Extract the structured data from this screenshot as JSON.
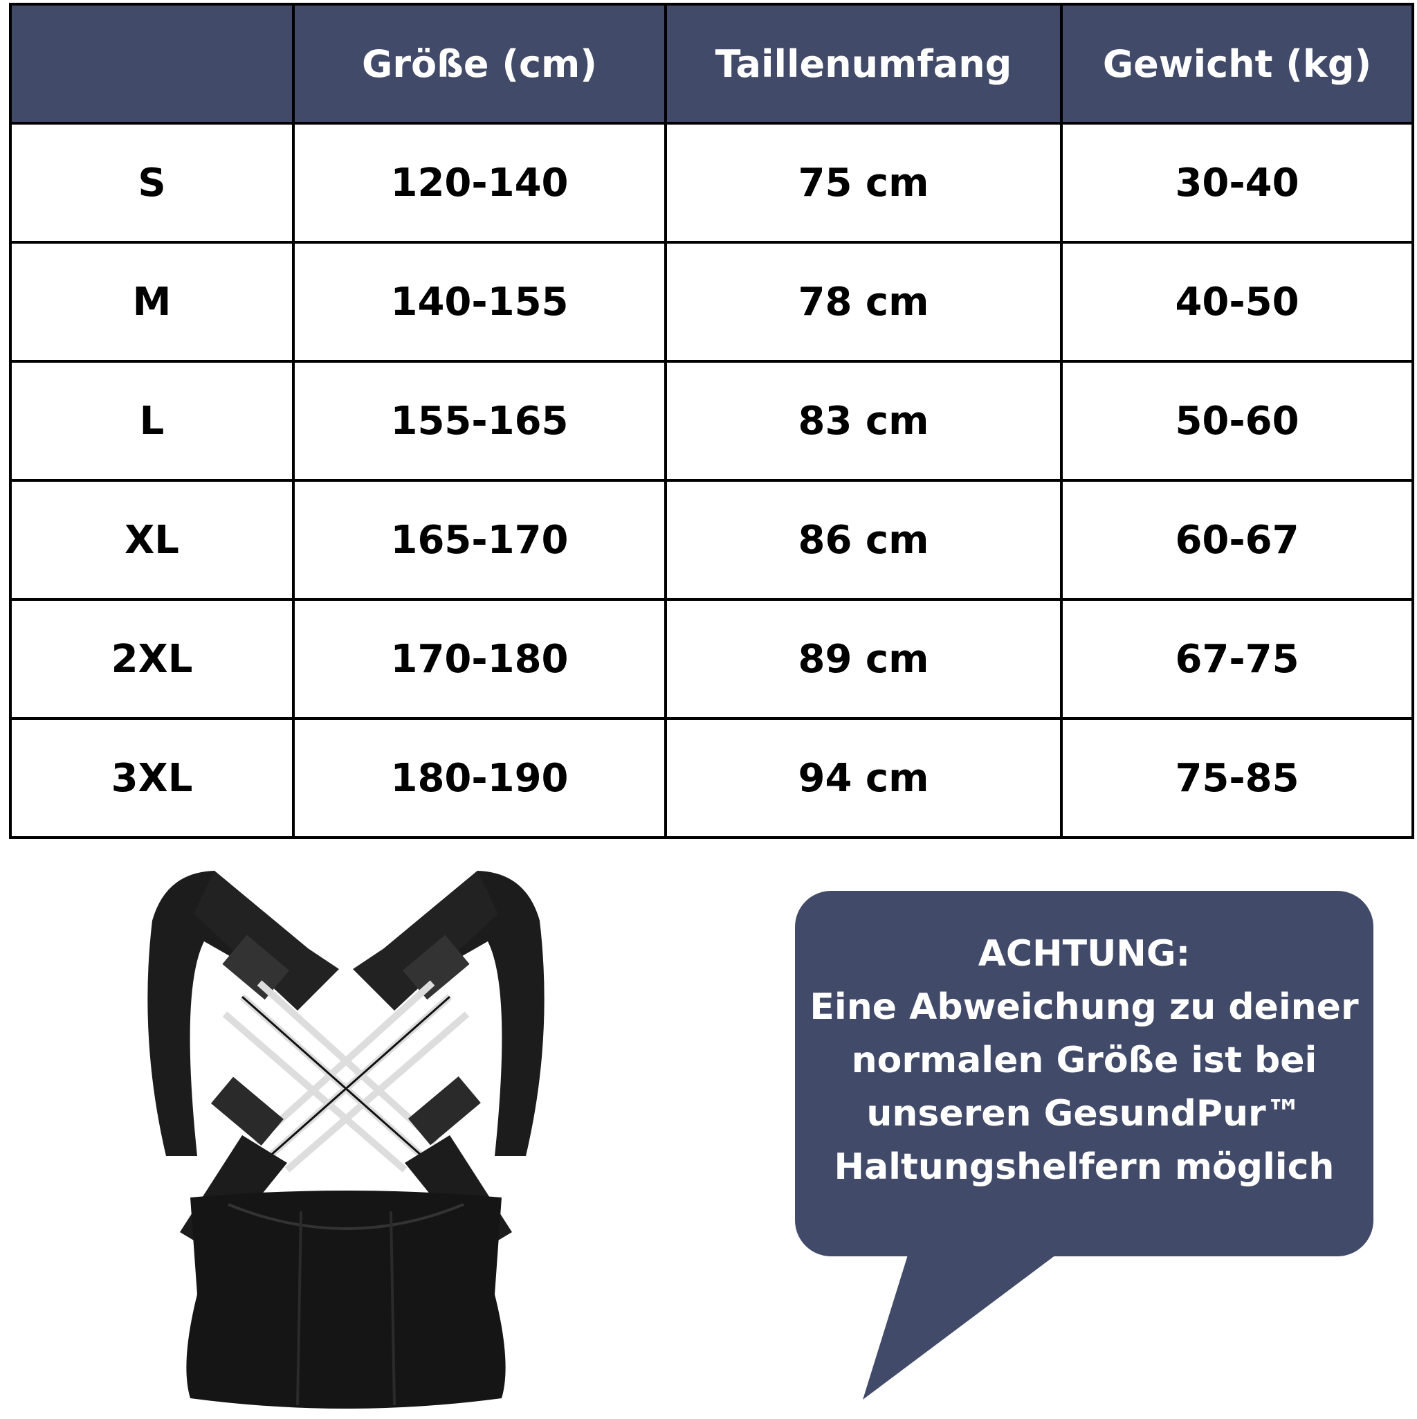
{
  "table": {
    "headers": [
      "",
      "Größe (cm)",
      "Taillenumfang",
      "Gewicht (kg)"
    ],
    "rows": [
      [
        "S",
        "120-140",
        "75 cm",
        "30-40"
      ],
      [
        "M",
        "140-155",
        "78 cm",
        "40-50"
      ],
      [
        "L",
        "155-165",
        "83 cm",
        "50-60"
      ],
      [
        "XL",
        "165-170",
        "86 cm",
        "60-67"
      ],
      [
        "2XL",
        "170-180",
        "89 cm",
        "67-75"
      ],
      [
        "3XL",
        "180-190",
        "94 cm",
        "75-85"
      ]
    ]
  },
  "notice": {
    "lines": [
      "ACHTUNG:",
      "Eine Abweichung zu deiner",
      "normalen Größe ist bei",
      "unseren GesundPur™",
      "Haltungshelfern möglich"
    ]
  },
  "colors": {
    "header_bg": "#414a68",
    "bubble_bg": "#414a68",
    "text_light": "#ffffff"
  },
  "image": {
    "subject": "posture-corrector-brace"
  }
}
